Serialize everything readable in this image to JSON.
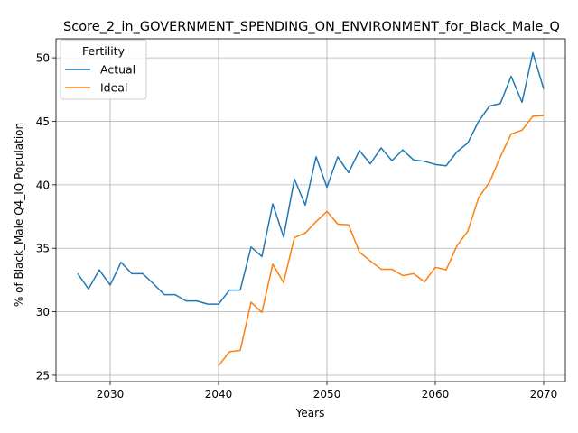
{
  "chart_data": {
    "type": "line",
    "title": "Score_2_in_GOVERNMENT_SPENDING_ON_ENVIRONMENT_for_Black_Male_Q",
    "xlabel": "Years",
    "ylabel": "% of Black_Male Q4_IQ Population",
    "xlim": [
      2025,
      2072
    ],
    "ylim": [
      24.5,
      51.5
    ],
    "xticks": [
      2030,
      2040,
      2050,
      2060,
      2070
    ],
    "yticks": [
      25,
      30,
      35,
      40,
      45,
      50
    ],
    "grid": true,
    "legend": {
      "title": "Fertility",
      "placement": "top-left"
    },
    "series": [
      {
        "name": "Actual",
        "color": "#1f77b4",
        "x": [
          2027,
          2028,
          2029,
          2030,
          2031,
          2032,
          2033,
          2034,
          2035,
          2036,
          2037,
          2038,
          2039,
          2040,
          2041,
          2042,
          2043,
          2044,
          2045,
          2046,
          2047,
          2048,
          2049,
          2050,
          2051,
          2052,
          2053,
          2054,
          2055,
          2056,
          2057,
          2058,
          2059,
          2060,
          2061,
          2062,
          2063,
          2064,
          2065,
          2066,
          2067,
          2068,
          2069,
          2070
        ],
        "y": [
          33.0,
          31.8,
          33.3,
          32.1,
          33.9,
          33.0,
          33.0,
          32.2,
          31.35,
          31.35,
          30.85,
          30.85,
          30.6,
          30.6,
          31.7,
          31.7,
          35.1,
          34.35,
          38.5,
          35.9,
          40.45,
          38.4,
          42.2,
          39.8,
          42.2,
          40.95,
          42.7,
          41.65,
          42.9,
          41.9,
          42.75,
          41.95,
          41.85,
          41.6,
          41.5,
          42.6,
          43.3,
          45.0,
          46.2,
          46.4,
          48.55,
          46.5,
          50.4,
          47.55
        ]
      },
      {
        "name": "Ideal",
        "color": "#ff7f0e",
        "x": [
          2040,
          2041,
          2042,
          2043,
          2044,
          2045,
          2046,
          2047,
          2048,
          2049,
          2050,
          2051,
          2052,
          2053,
          2054,
          2055,
          2056,
          2057,
          2058,
          2059,
          2060,
          2061,
          2062,
          2063,
          2064,
          2065,
          2066,
          2067,
          2068,
          2069,
          2070
        ],
        "y": [
          25.75,
          26.85,
          26.95,
          30.75,
          29.95,
          33.75,
          32.3,
          35.85,
          36.2,
          37.1,
          37.9,
          36.9,
          36.85,
          34.7,
          34.0,
          33.35,
          33.35,
          32.85,
          33.0,
          32.35,
          33.5,
          33.3,
          35.2,
          36.35,
          39.0,
          40.2,
          42.2,
          44.0,
          44.3,
          45.4,
          45.45
        ]
      }
    ]
  }
}
